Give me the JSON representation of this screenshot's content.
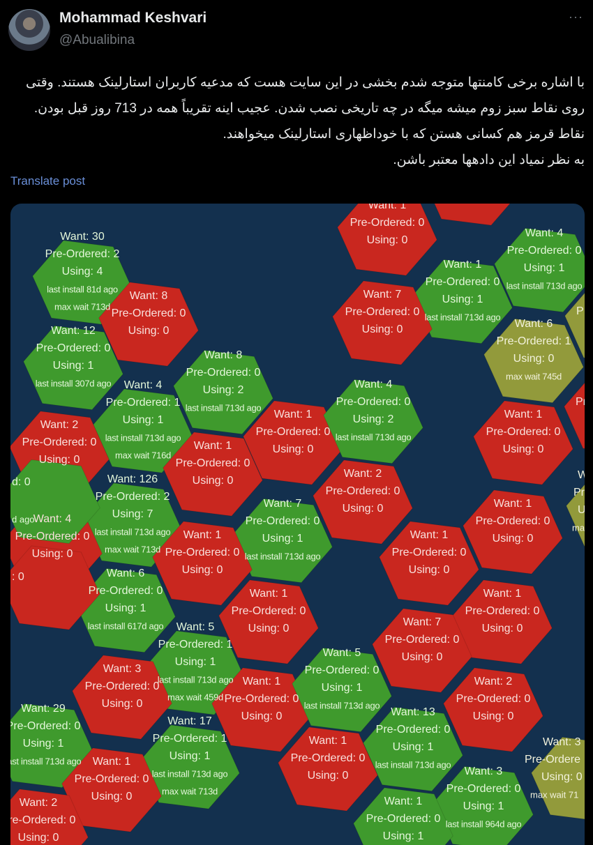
{
  "header": {
    "name": "Mohammad Keshvari",
    "handle": "@Abualibina",
    "more_icon": "···"
  },
  "post": {
    "lines": [
      "با اشاره برخی کامنتها متوجه شدم بخشی در این سایت هست که مدعیه کاربران استارلینک هستند. وقتی",
      "روی نقاط سبز زوم میشه میگه در چه تاریخی نصب شدن. عجیب اینه تقریباً همه در 713 روز قبل بودن.",
      "نقاط قرمز هم کسانی هستن که با خوداظهاری استارلینک میخواهند.",
      "به نظر نمیاد این دادهها معتبر باشن."
    ],
    "translate_label": "Translate post"
  },
  "map": {
    "colors": {
      "background": "#13304e",
      "green": "#3f9a2d",
      "red": "#c9271f",
      "olive": "#929a3b"
    },
    "cells": [
      {
        "color": "green",
        "lines": [
          "Want: 30",
          "Pre-Ordered: 2",
          "Using: 4",
          "last install 81d ago",
          "max wait 713d"
        ]
      },
      {
        "color": "red",
        "lines": [
          "Want: 8",
          "Pre-Ordered: 0",
          "Using: 0"
        ]
      },
      {
        "color": "green",
        "lines": [
          "Want: 12",
          "Pre-Ordered: 0",
          "Using: 1",
          "last install 307d ago"
        ]
      },
      {
        "color": "green",
        "lines": [
          "Want: 8",
          "Pre-Ordered: 0",
          "Using: 2",
          "last install 713d ago"
        ]
      },
      {
        "color": "green",
        "lines": [
          "Want: 4",
          "Pre-Ordered: 1",
          "Using: 1",
          "last install 713d ago",
          "max wait 716d"
        ]
      },
      {
        "color": "red",
        "lines": [
          "Want: 2",
          "Pre-Ordered: 0",
          "Using: 0"
        ]
      },
      {
        "color": "red",
        "lines": [
          "Want: 1",
          "Pre-Ordered: 0",
          "Using: 0"
        ]
      },
      {
        "color": "red",
        "lines": [
          "Want: 1",
          "Pre-Ordered: 0",
          "Using: 0"
        ]
      },
      {
        "color": "red",
        "lines": [
          "Using: 0"
        ]
      },
      {
        "color": "green",
        "lines": [
          "Want: 4",
          "Pre-Ordered: 0",
          "Using: 1",
          "last install 713d ago"
        ]
      },
      {
        "color": "green",
        "lines": [
          "Want: 1",
          "Pre-Ordered: 0",
          "Using: 1",
          "last install 713d ago"
        ]
      },
      {
        "color": "red",
        "lines": [
          "Want: 7",
          "Pre-Ordered: 0",
          "Using: 0"
        ]
      },
      {
        "color": "olive",
        "lines": [
          "Want: 6",
          "Pre-Ordered: 1",
          "Using: 0",
          "max wait 745d"
        ]
      },
      {
        "color": "green",
        "lines": [
          "Want: 4",
          "Pre-Ordered: 0",
          "Using: 2",
          "last install 713d ago"
        ]
      },
      {
        "color": "red",
        "lines": [
          "Want: 1",
          "Pre-Ordered: 0",
          "Using: 0"
        ]
      },
      {
        "color": "green",
        "lines": [
          "Want: 126",
          "Pre-Ordered: 2",
          "Using: 7",
          "last install 713d ago",
          "max wait 713d"
        ]
      },
      {
        "color": "red",
        "lines": [
          "Want: 1",
          "Pre-Ordered: 0",
          "Using: 0"
        ]
      },
      {
        "color": "red",
        "lines": [
          "Want: 4",
          "Pre-Ordered: 0",
          "Using: 0"
        ]
      },
      {
        "color": "green",
        "lines": [
          "Want: 7",
          "Pre-Ordered: 0",
          "Using: 1",
          "last install 713d ago"
        ]
      },
      {
        "color": "red",
        "lines": [
          "Want: 2",
          "Pre-Ordered: 0",
          "Using: 0"
        ]
      },
      {
        "color": "red",
        "lines": [
          "Want: 1",
          "Pre-Ordered: 0",
          "Using: 0"
        ]
      },
      {
        "color": "red",
        "lines": [
          "Want: 1",
          "Pre-Ordered: 0",
          "Using: 0"
        ]
      },
      {
        "color": "red",
        "lines": [
          "Want: 1",
          "Pre-Ordered: 0",
          "Using: 0"
        ]
      },
      {
        "color": "green",
        "lines": [
          "Want: 6",
          "Pre-Ordered: 0",
          "Using: 1",
          "last install 617d ago"
        ]
      },
      {
        "color": "red",
        "lines": [
          "Want: 1",
          "Pre-Ordered: 0",
          "Using: 0"
        ]
      },
      {
        "color": "red",
        "lines": [
          "Want: 1",
          "Pre-Ordered: 0",
          "Using: 0"
        ]
      },
      {
        "color": "red",
        "lines": [
          "Want: 7",
          "Pre-Ordered: 0",
          "Using: 0"
        ]
      },
      {
        "color": "green",
        "lines": [
          "Want: 5",
          "Pre-Ordered: 1",
          "Using: 1",
          "last install 713d ago",
          "max wait 459d"
        ]
      },
      {
        "color": "red",
        "lines": [
          "Want: 3",
          "Pre-Ordered: 0",
          "Using: 0"
        ]
      },
      {
        "color": "red",
        "lines": [
          "Want: 1",
          "Pre-Ordered: 0",
          "Using: 0"
        ]
      },
      {
        "color": "green",
        "lines": [
          "Want: 5",
          "Pre-Ordered: 0",
          "Using: 1",
          "last install 713d ago"
        ]
      },
      {
        "color": "red",
        "lines": [
          "Want: 2",
          "Pre-Ordered: 0",
          "Using: 0"
        ]
      },
      {
        "color": "green",
        "lines": [
          "Want: 29",
          "Pre-Ordered: 0",
          "Using: 1",
          "last install 713d ago"
        ]
      },
      {
        "color": "green",
        "lines": [
          "Want: 17",
          "Pre-Ordered: 1",
          "Using: 1",
          "last install 713d ago",
          "max wait 713d"
        ]
      },
      {
        "color": "red",
        "lines": [
          "Want: 1",
          "Pre-Ordered: 0",
          "Using: 0"
        ]
      },
      {
        "color": "red",
        "lines": [
          "Want: 1",
          "Pre-Ordered: 0",
          "Using: 0"
        ]
      },
      {
        "color": "green",
        "lines": [
          "Want: 13",
          "Pre-Ordered: 0",
          "Using: 1",
          "last install 713d ago"
        ]
      },
      {
        "color": "green",
        "lines": [
          "Want: 3",
          "Pre-Ordered: 0",
          "Using: 1",
          "last install 964d ago"
        ]
      },
      {
        "color": "red",
        "lines": [
          "Want: 2",
          "Pre-Ordered: 0",
          "Using: 0"
        ]
      },
      {
        "color": "green",
        "lines": [
          "Want: 1",
          "Pre-Ordered: 0",
          "Using: 1"
        ]
      },
      {
        "color": "olive",
        "lines": [
          "Want: 3",
          "Pre-Ordere",
          "Using: 0",
          "max wait 71"
        ]
      },
      {
        "color": "olive",
        "lines": [
          "W",
          "Pre-C",
          "Us",
          "max w"
        ]
      },
      {
        "color": "green",
        "lines": [
          "d: 0",
          "d ago"
        ]
      },
      {
        "color": "red",
        "lines": [
          ": 0"
        ]
      },
      {
        "color": "red",
        "lines": [
          "Pre"
        ]
      },
      {
        "color": "olive",
        "lines": [
          "P"
        ]
      }
    ]
  }
}
